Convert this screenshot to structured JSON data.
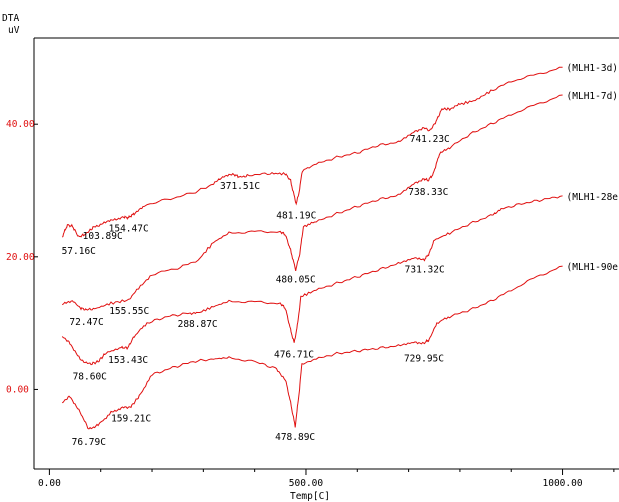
{
  "chart_data": {
    "type": "line",
    "ylabel_line1": "DTA",
    "ylabel_line2": "uV",
    "xlabel": "Temp[C]",
    "xlim": [
      -30,
      1110
    ],
    "ylim": [
      -12,
      53
    ],
    "x_ticks": [
      0,
      500,
      1000
    ],
    "x_tick_labels": [
      "0.00",
      "500.00",
      "1000.00"
    ],
    "y_ticks": [
      0,
      20,
      40
    ],
    "y_tick_labels": [
      "0.00",
      "20.00",
      "40.00"
    ],
    "grid": false,
    "line_color": "#e01010",
    "y_tick_color": "#e01010",
    "series": [
      {
        "name": "(MLH1-3d)",
        "points": [
          [
            25,
            23
          ],
          [
            35,
            24.8
          ],
          [
            45,
            24.6
          ],
          [
            57,
            23
          ],
          [
            70,
            23.4
          ],
          [
            85,
            24.4
          ],
          [
            104,
            25
          ],
          [
            125,
            25.6
          ],
          [
            145,
            26
          ],
          [
            154,
            25.9
          ],
          [
            165,
            26.5
          ],
          [
            185,
            27.6
          ],
          [
            230,
            28.7
          ],
          [
            280,
            29.6
          ],
          [
            320,
            31
          ],
          [
            340,
            32.2
          ],
          [
            360,
            32.4
          ],
          [
            372,
            32
          ],
          [
            390,
            32.3
          ],
          [
            430,
            32.6
          ],
          [
            460,
            32.5
          ],
          [
            470,
            31.5
          ],
          [
            476,
            29.5
          ],
          [
            481,
            28
          ],
          [
            486,
            29.5
          ],
          [
            493,
            33
          ],
          [
            520,
            34
          ],
          [
            560,
            35
          ],
          [
            600,
            35.7
          ],
          [
            640,
            36.8
          ],
          [
            680,
            37.3
          ],
          [
            710,
            38.8
          ],
          [
            730,
            39.5
          ],
          [
            741,
            39
          ],
          [
            752,
            40.2
          ],
          [
            765,
            42.3
          ],
          [
            780,
            42.3
          ],
          [
            800,
            43
          ],
          [
            830,
            43.6
          ],
          [
            860,
            45
          ],
          [
            900,
            46.5
          ],
          [
            950,
            47.5
          ],
          [
            1000,
            48.6
          ]
        ],
        "end_label_y": 48.6
      },
      {
        "name": "(MLH1-7d)",
        "points": [
          [
            25,
            12.8
          ],
          [
            45,
            13.4
          ],
          [
            60,
            12.3
          ],
          [
            72,
            12
          ],
          [
            90,
            12.2
          ],
          [
            120,
            13
          ],
          [
            155,
            13.5
          ],
          [
            170,
            15
          ],
          [
            200,
            17.3
          ],
          [
            250,
            18.3
          ],
          [
            290,
            19.5
          ],
          [
            320,
            22.2
          ],
          [
            350,
            23.6
          ],
          [
            400,
            23.8
          ],
          [
            450,
            23.8
          ],
          [
            460,
            23.3
          ],
          [
            470,
            21
          ],
          [
            480,
            18
          ],
          [
            488,
            20.5
          ],
          [
            495,
            24.6
          ],
          [
            520,
            25.3
          ],
          [
            560,
            26.5
          ],
          [
            600,
            27.6
          ],
          [
            640,
            28.6
          ],
          [
            680,
            29.3
          ],
          [
            710,
            31
          ],
          [
            730,
            31.8
          ],
          [
            738,
            31.5
          ],
          [
            748,
            32.5
          ],
          [
            760,
            35.5
          ],
          [
            780,
            36.5
          ],
          [
            820,
            38.5
          ],
          [
            860,
            40
          ],
          [
            900,
            41.5
          ],
          [
            950,
            43
          ],
          [
            1000,
            44.4
          ]
        ],
        "end_label_y": 44.4
      },
      {
        "name": "(MLH1-28e",
        "points": [
          [
            25,
            8
          ],
          [
            40,
            7
          ],
          [
            60,
            4.5
          ],
          [
            79,
            3.8
          ],
          [
            95,
            4.2
          ],
          [
            110,
            5.5
          ],
          [
            140,
            6.3
          ],
          [
            153,
            6.3
          ],
          [
            165,
            8
          ],
          [
            190,
            10
          ],
          [
            230,
            11
          ],
          [
            270,
            11.5
          ],
          [
            289,
            11.5
          ],
          [
            320,
            12.5
          ],
          [
            350,
            13.3
          ],
          [
            400,
            13.2
          ],
          [
            450,
            13
          ],
          [
            460,
            12.2
          ],
          [
            470,
            9
          ],
          [
            477,
            7
          ],
          [
            484,
            10
          ],
          [
            490,
            14
          ],
          [
            520,
            15
          ],
          [
            560,
            16
          ],
          [
            600,
            17
          ],
          [
            640,
            18
          ],
          [
            680,
            19
          ],
          [
            710,
            19.8
          ],
          [
            731,
            19.6
          ],
          [
            740,
            20.5
          ],
          [
            750,
            22.5
          ],
          [
            780,
            23.6
          ],
          [
            820,
            25
          ],
          [
            860,
            26.2
          ],
          [
            880,
            27.2
          ],
          [
            920,
            28
          ],
          [
            960,
            28.6
          ],
          [
            1000,
            29.2
          ]
        ],
        "end_label_y": 29.2
      },
      {
        "name": "(MLH1-90e",
        "points": [
          [
            25,
            -2
          ],
          [
            40,
            -1
          ],
          [
            60,
            -3.5
          ],
          [
            77,
            -6
          ],
          [
            95,
            -5.4
          ],
          [
            120,
            -3.5
          ],
          [
            140,
            -2.8
          ],
          [
            159,
            -2.6
          ],
          [
            175,
            -1
          ],
          [
            200,
            2.2
          ],
          [
            240,
            3.3
          ],
          [
            280,
            4.2
          ],
          [
            320,
            4.6
          ],
          [
            350,
            4.8
          ],
          [
            400,
            4.2
          ],
          [
            440,
            3.2
          ],
          [
            460,
            1.5
          ],
          [
            470,
            -2
          ],
          [
            479,
            -5.6
          ],
          [
            486,
            -1
          ],
          [
            492,
            3.8
          ],
          [
            520,
            4.6
          ],
          [
            560,
            5.4
          ],
          [
            600,
            5.8
          ],
          [
            640,
            6.2
          ],
          [
            680,
            6.6
          ],
          [
            710,
            7.1
          ],
          [
            730,
            7
          ],
          [
            740,
            7.5
          ],
          [
            755,
            10
          ],
          [
            780,
            11
          ],
          [
            820,
            12
          ],
          [
            860,
            13.3
          ],
          [
            900,
            15
          ],
          [
            950,
            17
          ],
          [
            1000,
            18.6
          ]
        ],
        "end_label_y": 18.6
      }
    ],
    "annotations": [
      {
        "text": "57.16C",
        "x": 57.16,
        "y": 20.4
      },
      {
        "text": "103.89C",
        "x": 103.89,
        "y": 22.7
      },
      {
        "text": "154.47C",
        "x": 154.47,
        "y": 23.8
      },
      {
        "text": "371.51C",
        "x": 371.51,
        "y": 30.2
      },
      {
        "text": "481.19C",
        "x": 481.19,
        "y": 25.8
      },
      {
        "text": "741.23C",
        "x": 741.23,
        "y": 37.3
      },
      {
        "text": "738.33C",
        "x": 738.33,
        "y": 29.3
      },
      {
        "text": "480.05C",
        "x": 480.05,
        "y": 16.1
      },
      {
        "text": "72.47C",
        "x": 72.47,
        "y": 9.7
      },
      {
        "text": "155.55C",
        "x": 155.55,
        "y": 11.4
      },
      {
        "text": "731.32C",
        "x": 731.32,
        "y": 17.6
      },
      {
        "text": "288.87C",
        "x": 288.87,
        "y": 9.4
      },
      {
        "text": "78.60C",
        "x": 78.6,
        "y": 1.5
      },
      {
        "text": "153.43C",
        "x": 153.43,
        "y": 4.0
      },
      {
        "text": "476.71C",
        "x": 476.71,
        "y": 4.8
      },
      {
        "text": "729.95C",
        "x": 729.95,
        "y": 4.2
      },
      {
        "text": "76.79C",
        "x": 76.79,
        "y": -8.4
      },
      {
        "text": "159.21C",
        "x": 159.21,
        "y": -4.8
      },
      {
        "text": "478.89C",
        "x": 478.89,
        "y": -7.6
      }
    ]
  }
}
